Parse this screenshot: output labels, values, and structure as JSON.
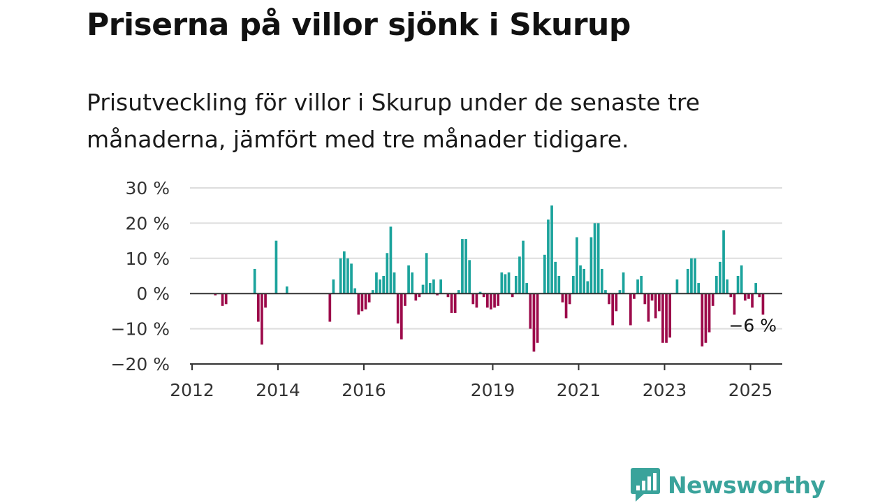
{
  "title": "Priserna på villor sjönk i Skurup",
  "subtitle": "Prisutveckling för villor i Skurup under de senaste tre månaderna, jämfört med tre månader tidigare.",
  "brand": "Newsworthy",
  "colors": {
    "positive": "#1ba39c",
    "negative": "#9c0a4a",
    "grid": "#dddddd",
    "axis": "#333333",
    "brand": "#3aa39b"
  },
  "chart_data": {
    "type": "bar",
    "ylim": [
      -20,
      30
    ],
    "yticks": [
      30,
      20,
      10,
      0,
      -10,
      -20
    ],
    "ytick_labels": [
      "30 %",
      "20 %",
      "10 %",
      "0 %",
      "−10 %",
      "−20 %"
    ],
    "xticks": [
      {
        "year": 2012,
        "label": "2012"
      },
      {
        "year": 2014,
        "label": "2014"
      },
      {
        "year": 2016,
        "label": "2016"
      },
      {
        "year": 2019,
        "label": "2019"
      },
      {
        "year": 2021,
        "label": "2021"
      },
      {
        "year": 2023,
        "label": "2023"
      },
      {
        "year": 2025,
        "label": "2025"
      }
    ],
    "start": "2012-01",
    "grid": true,
    "last_value_label": "−6 %",
    "values": [
      0,
      0,
      0,
      0,
      0,
      0,
      -0.5,
      0,
      -3.5,
      -3,
      0,
      0,
      0,
      0,
      0,
      0,
      0,
      7,
      -8,
      -14.5,
      -4,
      0,
      0,
      15,
      0,
      0,
      2,
      0,
      0,
      0,
      0,
      0,
      0,
      0,
      0,
      0,
      0,
      0,
      -8,
      4,
      0,
      10,
      12,
      10,
      8.5,
      1.5,
      -6,
      -5,
      -4.5,
      -2.5,
      1,
      6,
      4,
      5,
      11.5,
      19,
      6,
      -8.5,
      -13,
      -3.5,
      8,
      6,
      -2,
      -1,
      2.5,
      11.5,
      3,
      4,
      -0.5,
      4,
      0,
      -1,
      -5.5,
      -5.5,
      1,
      15.5,
      15.5,
      9.5,
      -3,
      -4,
      0.5,
      -1,
      -4,
      -4.5,
      -4,
      -3.5,
      6,
      5.5,
      6,
      -1,
      5,
      10.5,
      15,
      3,
      -10,
      -16.5,
      -14,
      0,
      11,
      21,
      25,
      9,
      5,
      -2.5,
      -7,
      -3,
      5,
      16,
      8,
      7,
      3.5,
      16,
      20,
      20,
      7,
      1,
      -3,
      -9,
      -5,
      1,
      6,
      0,
      -9,
      -1.5,
      4,
      5,
      -3,
      -8,
      -2,
      -7,
      -5,
      -14,
      -14,
      -12.5,
      0,
      4,
      0,
      0,
      7,
      10,
      10,
      3,
      -15,
      -14,
      -11,
      -3.5,
      5,
      9,
      18,
      4,
      -1,
      -6,
      5,
      8,
      -2,
      -1.5,
      -4,
      3,
      -1,
      -6
    ]
  }
}
